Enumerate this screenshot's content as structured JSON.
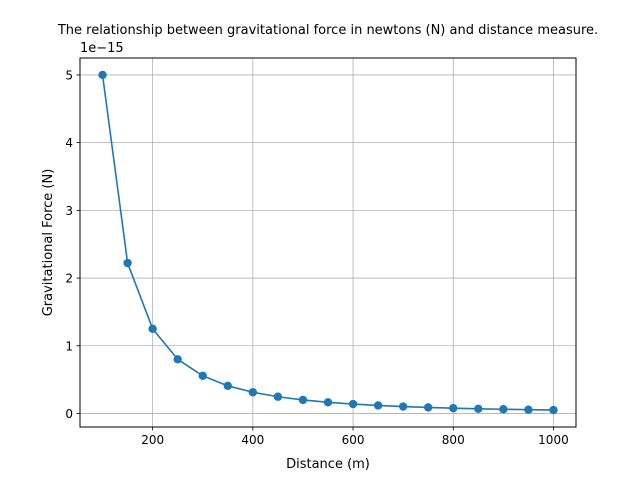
{
  "chart_data": {
    "type": "line",
    "title": "The relationship between gravitational force in newtons (N) and distance measure.",
    "xlabel": "Distance (m)",
    "ylabel": "Gravitational Force (N)",
    "y_offset_label": "1e−15",
    "xlim": [
      55,
      1045
    ],
    "ylim": [
      -0.2,
      5.25
    ],
    "x_ticks": [
      200,
      400,
      600,
      800,
      1000
    ],
    "y_ticks": [
      0,
      1,
      2,
      3,
      4,
      5
    ],
    "grid": true,
    "line_color": "#1f77b4",
    "marker": "circle",
    "series": [
      {
        "x": [
          100,
          150,
          200,
          250,
          300,
          350,
          400,
          450,
          500,
          550,
          600,
          650,
          700,
          750,
          800,
          850,
          900,
          950,
          1000
        ],
        "y": [
          5.0,
          2.222,
          1.25,
          0.8,
          0.556,
          0.408,
          0.313,
          0.247,
          0.2,
          0.165,
          0.139,
          0.118,
          0.102,
          0.089,
          0.078,
          0.069,
          0.062,
          0.055,
          0.05
        ]
      }
    ]
  }
}
